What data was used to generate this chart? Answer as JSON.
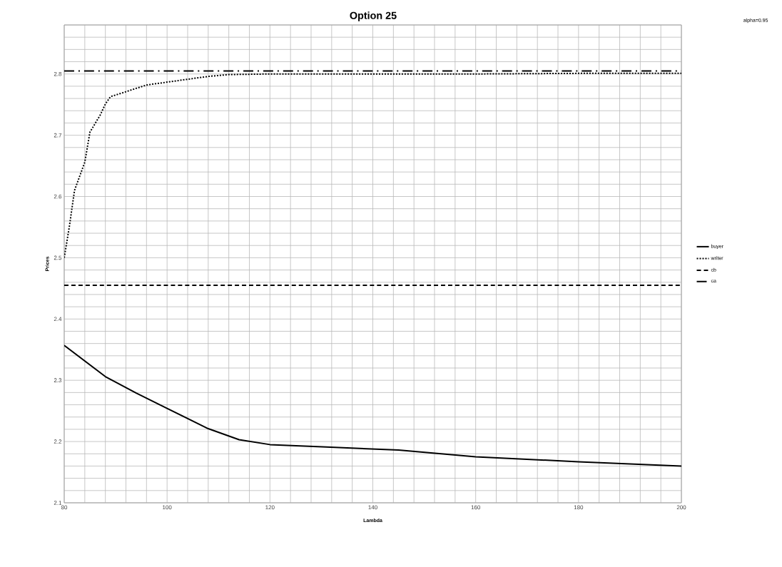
{
  "chart_data": {
    "type": "line",
    "title": "Option 25",
    "annotations": [
      "alpha=0.95"
    ],
    "xlabel": "Lambda",
    "ylabel": "Prices",
    "xlim": [
      80,
      200
    ],
    "ylim": [
      2.1,
      2.88
    ],
    "grid": true,
    "legend": "right",
    "xticks": [
      80,
      {
        "value": 84,
        "label": null
      },
      {
        "value": 88,
        "label": null
      },
      {
        "value": 92,
        "label": null
      },
      {
        "value": 96,
        "label": null
      },
      100,
      {
        "value": 104,
        "label": null
      },
      {
        "value": 108,
        "label": null
      },
      {
        "value": 112,
        "label": null
      },
      {
        "value": 116,
        "label": null
      },
      120,
      {
        "value": 124,
        "label": null
      },
      {
        "value": 128,
        "label": null
      },
      {
        "value": 132,
        "label": null
      },
      {
        "value": 136,
        "label": null
      },
      140,
      {
        "value": 144,
        "label": null
      },
      {
        "value": 148,
        "label": null
      },
      {
        "value": 152,
        "label": null
      },
      {
        "value": 156,
        "label": null
      },
      160,
      {
        "value": 164,
        "label": null
      },
      {
        "value": 168,
        "label": null
      },
      {
        "value": 172,
        "label": null
      },
      {
        "value": 176,
        "label": null
      },
      180,
      {
        "value": 184,
        "label": null
      },
      {
        "value": 188,
        "label": null
      },
      {
        "value": 192,
        "label": null
      },
      {
        "value": 196,
        "label": null
      },
      200
    ],
    "yticks": [
      2.1,
      {
        "value": 2.12,
        "label": null
      },
      {
        "value": 2.14,
        "label": null
      },
      {
        "value": 2.16,
        "label": null
      },
      {
        "value": 2.18,
        "label": null
      },
      2.2,
      {
        "value": 2.22,
        "label": null
      },
      {
        "value": 2.24,
        "label": null
      },
      {
        "value": 2.26,
        "label": null
      },
      {
        "value": 2.28,
        "label": null
      },
      2.3,
      {
        "value": 2.32,
        "label": null
      },
      {
        "value": 2.34,
        "label": null
      },
      {
        "value": 2.36,
        "label": null
      },
      {
        "value": 2.38,
        "label": null
      },
      2.4,
      {
        "value": 2.42,
        "label": null
      },
      {
        "value": 2.44,
        "label": null
      },
      {
        "value": 2.46,
        "label": null
      },
      {
        "value": 2.48,
        "label": null
      },
      2.5,
      {
        "value": 2.52,
        "label": null
      },
      {
        "value": 2.54,
        "label": null
      },
      {
        "value": 2.56,
        "label": null
      },
      {
        "value": 2.58,
        "label": null
      },
      2.6,
      {
        "value": 2.62,
        "label": null
      },
      {
        "value": 2.64,
        "label": null
      },
      {
        "value": 2.66,
        "label": null
      },
      {
        "value": 2.68,
        "label": null
      },
      2.7,
      {
        "value": 2.72,
        "label": null
      },
      {
        "value": 2.74,
        "label": null
      },
      {
        "value": 2.76,
        "label": null
      },
      {
        "value": 2.78,
        "label": null
      },
      2.8,
      {
        "value": 2.82,
        "label": null
      },
      {
        "value": 2.84,
        "label": null
      },
      {
        "value": 2.86,
        "label": null
      },
      {
        "value": 2.88,
        "label": null
      }
    ],
    "series": [
      {
        "name": "buyer",
        "color": "#000000",
        "line_style": "solid",
        "x": [
          80,
          88,
          94,
          100,
          108,
          114,
          120,
          131,
          145,
          160,
          180,
          200
        ],
        "values": [
          2.357,
          2.306,
          2.279,
          2.254,
          2.221,
          2.203,
          2.195,
          2.191,
          2.186,
          2.175,
          2.167,
          2.16
        ]
      },
      {
        "name": "writer",
        "color": "#000000",
        "line_style": "dotted",
        "x": [
          80,
          81,
          82,
          84,
          85,
          87,
          88,
          89,
          92,
          96,
          102,
          108,
          112,
          120,
          140,
          160,
          180,
          200
        ],
        "values": [
          2.5,
          2.551,
          2.61,
          2.656,
          2.705,
          2.733,
          2.751,
          2.763,
          2.771,
          2.782,
          2.789,
          2.796,
          2.799,
          2.8,
          2.8,
          2.8,
          2.801,
          2.801
        ]
      },
      {
        "name": "cb",
        "color": "#000000",
        "line_style": "dashed",
        "x": [
          80,
          200
        ],
        "values": [
          2.455,
          2.455
        ]
      },
      {
        "name": "ca",
        "color": "#000000",
        "line_style": "dashdot",
        "x": [
          80,
          200
        ],
        "values": [
          2.805,
          2.805
        ]
      }
    ]
  }
}
